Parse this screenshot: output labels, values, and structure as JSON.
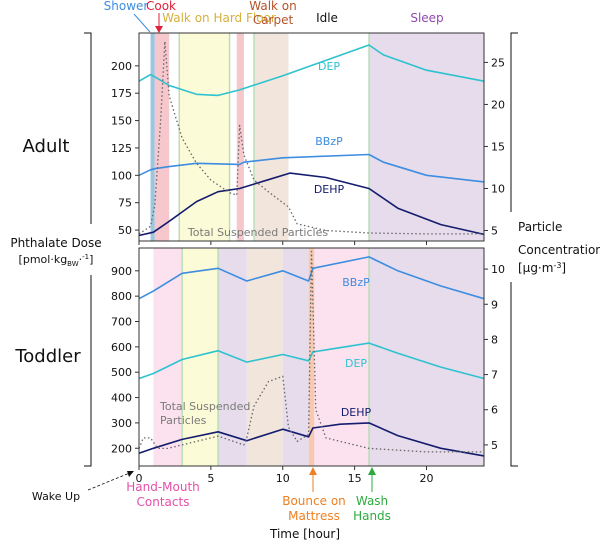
{
  "chart_data": [
    {
      "type": "line",
      "panel": "Adult",
      "panel_label": "Adult",
      "x_range": [
        0,
        24
      ],
      "ylim": [
        40,
        230
      ],
      "y_ticks": [
        50,
        75,
        100,
        125,
        150,
        175,
        200
      ],
      "y2lim": [
        3.75,
        28.5
      ],
      "y2_ticks": [
        5,
        10,
        15,
        20,
        25
      ],
      "activities": [
        {
          "name": "Shower",
          "start": 0.8,
          "end": 1.1,
          "color": "#9ec5df"
        },
        {
          "name": "Cook",
          "start": 1.1,
          "end": 2.1,
          "color": "#f6c7cc"
        },
        {
          "name": "Walk on Hard Floor",
          "start": 2.8,
          "end": 6.3,
          "color": "#fbfbd8"
        },
        {
          "name": "Cook",
          "start": 6.8,
          "end": 7.3,
          "color": "#f6c7cc"
        },
        {
          "name": "Walk on Carpet",
          "start": 8.0,
          "end": 10.4,
          "color": "#f1e5dc"
        },
        {
          "name": "Sleep",
          "start": 16.0,
          "end": 24.0,
          "color": "#e6dcec"
        }
      ],
      "series": [
        {
          "name": "DEP",
          "axis": "left",
          "color": "#2ec2cf",
          "x": [
            0,
            0.8,
            1.1,
            2.1,
            4,
            5.5,
            7,
            10,
            13,
            16,
            17,
            20,
            24
          ],
          "values": [
            186,
            192,
            190,
            182,
            174,
            173,
            178,
            191,
            205,
            219,
            210,
            196,
            186
          ]
        },
        {
          "name": "BBzP",
          "axis": "left",
          "color": "#3d8de0",
          "x": [
            0,
            0.8,
            1.1,
            2.1,
            4,
            7,
            7.3,
            10,
            16,
            17,
            20,
            24
          ],
          "values": [
            100,
            105,
            106,
            108,
            111,
            110,
            112,
            116,
            119,
            112,
            100,
            94
          ]
        },
        {
          "name": "DEHP",
          "axis": "left",
          "color": "#141c6e",
          "x": [
            0,
            1,
            2.1,
            4,
            5.5,
            7,
            9,
            10.5,
            13,
            16,
            18,
            21,
            24
          ],
          "values": [
            45,
            48,
            58,
            76,
            85,
            88,
            96,
            102,
            98,
            88,
            70,
            55,
            46
          ]
        },
        {
          "name": "Total Suspended Particles",
          "axis": "right",
          "color": "#666666",
          "x": [
            0,
            0.8,
            1.1,
            1.5,
            1.8,
            2.1,
            3,
            4,
            5,
            6.3,
            6.8,
            7.0,
            7.3,
            8,
            9,
            10.4,
            11,
            13,
            16,
            20,
            24
          ],
          "values": [
            4.6,
            5.5,
            8,
            18,
            27.5,
            21,
            16,
            13,
            11,
            9.5,
            9.2,
            17.5,
            14,
            11,
            9.6,
            7.8,
            5.8,
            5,
            4.7,
            4.6,
            4.6
          ]
        }
      ],
      "annotations": [
        {
          "text": "Idle"
        }
      ]
    },
    {
      "type": "line",
      "panel": "Toddler",
      "panel_label": "Toddler",
      "x_range": [
        0,
        24
      ],
      "ylim": [
        130,
        990
      ],
      "y_ticks": [
        200,
        300,
        400,
        500,
        600,
        700,
        800,
        900
      ],
      "y2lim": [
        4.4,
        10.6
      ],
      "y2_ticks": [
        5,
        6,
        7,
        8,
        9,
        10
      ],
      "x_ticks": [
        0,
        5,
        10,
        15,
        20
      ],
      "xlabel": "Time [hour]",
      "activities": [
        {
          "name": "Hand-Mouth Contacts",
          "start": 1.0,
          "end": 3.0,
          "color": "#fce2ee"
        },
        {
          "name": "Walk on Hard Floor",
          "start": 3.0,
          "end": 5.5,
          "color": "#fbfbd8"
        },
        {
          "name": "Hand-Mouth Contacts",
          "start": 5.5,
          "end": 7.5,
          "color": "#e6dcec"
        },
        {
          "name": "Walk on Carpet",
          "start": 7.5,
          "end": 10.0,
          "color": "#f1e5dc"
        },
        {
          "name": "Hand-Mouth Contacts",
          "start": 10.0,
          "end": 11.8,
          "color": "#e6dcec"
        },
        {
          "name": "Bounce on Mattress",
          "start": 11.8,
          "end": 12.2,
          "color": "#f7c8b2"
        },
        {
          "name": "Hand-Mouth Contacts",
          "start": 12.2,
          "end": 16.0,
          "color": "#fce2ee"
        },
        {
          "name": "Sleep",
          "start": 16.0,
          "end": 24.0,
          "color": "#e6dcec"
        }
      ],
      "series": [
        {
          "name": "BBzP",
          "axis": "left",
          "color": "#3d8de0",
          "x": [
            0,
            1,
            3,
            5.5,
            7.5,
            10,
            11.8,
            12.1,
            16,
            18,
            21,
            24
          ],
          "values": [
            790,
            820,
            890,
            910,
            860,
            900,
            860,
            910,
            955,
            900,
            840,
            790
          ]
        },
        {
          "name": "DEP",
          "axis": "left",
          "color": "#2ec2cf",
          "x": [
            0,
            1,
            3,
            5.5,
            7.5,
            10,
            11.8,
            12.1,
            16,
            18,
            21,
            24
          ],
          "values": [
            475,
            495,
            550,
            585,
            540,
            570,
            545,
            580,
            615,
            575,
            520,
            475
          ]
        },
        {
          "name": "DEHP",
          "axis": "left",
          "color": "#141c6e",
          "x": [
            0,
            1,
            3,
            5.5,
            7.5,
            10,
            11.8,
            12.1,
            14,
            16,
            18,
            21,
            24
          ],
          "values": [
            180,
            200,
            235,
            265,
            230,
            275,
            245,
            280,
            295,
            300,
            250,
            200,
            170
          ]
        },
        {
          "name": "Total Suspended Particles",
          "axis": "right",
          "color": "#666666",
          "x": [
            0,
            0.3,
            0.8,
            1.3,
            2,
            3,
            4,
            5.5,
            7.3,
            7.5,
            8,
            9,
            10.0,
            10.4,
            11,
            11.8,
            12.0,
            12.3,
            13,
            16,
            20,
            24
          ],
          "values": [
            4.9,
            5.2,
            5.2,
            4.9,
            4.9,
            5.0,
            5.1,
            5.25,
            5.0,
            5.2,
            6.1,
            6.8,
            6.95,
            5.5,
            5.1,
            5.3,
            10.5,
            6.0,
            5.2,
            4.9,
            4.8,
            4.8
          ]
        }
      ],
      "annotations": [
        {
          "text": "Wake Up"
        },
        {
          "text": "Hand-Mouth Contacts"
        },
        {
          "text": "Bounce on Mattress"
        },
        {
          "text": "Wash Hands"
        }
      ]
    }
  ],
  "labels": {
    "shower": "Shower",
    "cook": "Cook",
    "walk_hard_floor": "Walk on Hard Floor",
    "walk_carpet": "Walk on Carpet",
    "idle": "Idle",
    "sleep": "Sleep",
    "adult": "Adult",
    "toddler": "Toddler",
    "left_axis_line1": "Phthalate Dose",
    "left_axis_line2_pre": "[pmol·kg",
    "left_axis_line2_sub": "BW",
    "left_axis_line2_post": "·",
    "left_axis_line2_sup": "-1",
    "left_axis_line2_end": "]",
    "right_axis_line1": "Particle",
    "right_axis_line2": "Concentration",
    "right_axis_line3_pre": "[µg·m",
    "right_axis_line3_sup": "-3",
    "right_axis_line3_end": "]",
    "xlabel": "Time [hour]",
    "wake_up": "Wake Up",
    "hand_mouth_line1": "Hand-Mouth",
    "hand_mouth_line2": "Contacts",
    "bounce_line1": "Bounce on",
    "bounce_line2": "Mattress",
    "wash_line1": "Wash",
    "wash_line2": "Hands",
    "tsp_adult": "Total Suspended Particles",
    "tsp_toddler_line1": "Total Suspended",
    "tsp_toddler_line2": "Particles"
  },
  "colors": {
    "shower_label": "#3d8de0",
    "cook_label": "#e0203a",
    "walk_hard_label": "#d4b13a",
    "walk_carpet_label": "#b5532a",
    "idle_label": "#111111",
    "sleep_label": "#9048b0",
    "hand_mouth_label": "#e44fa8",
    "bounce_label": "#ee7f22",
    "wash_label": "#2faa3f",
    "green_marker": "#b6ddb4",
    "tsp_label": "#7a7a7a"
  }
}
